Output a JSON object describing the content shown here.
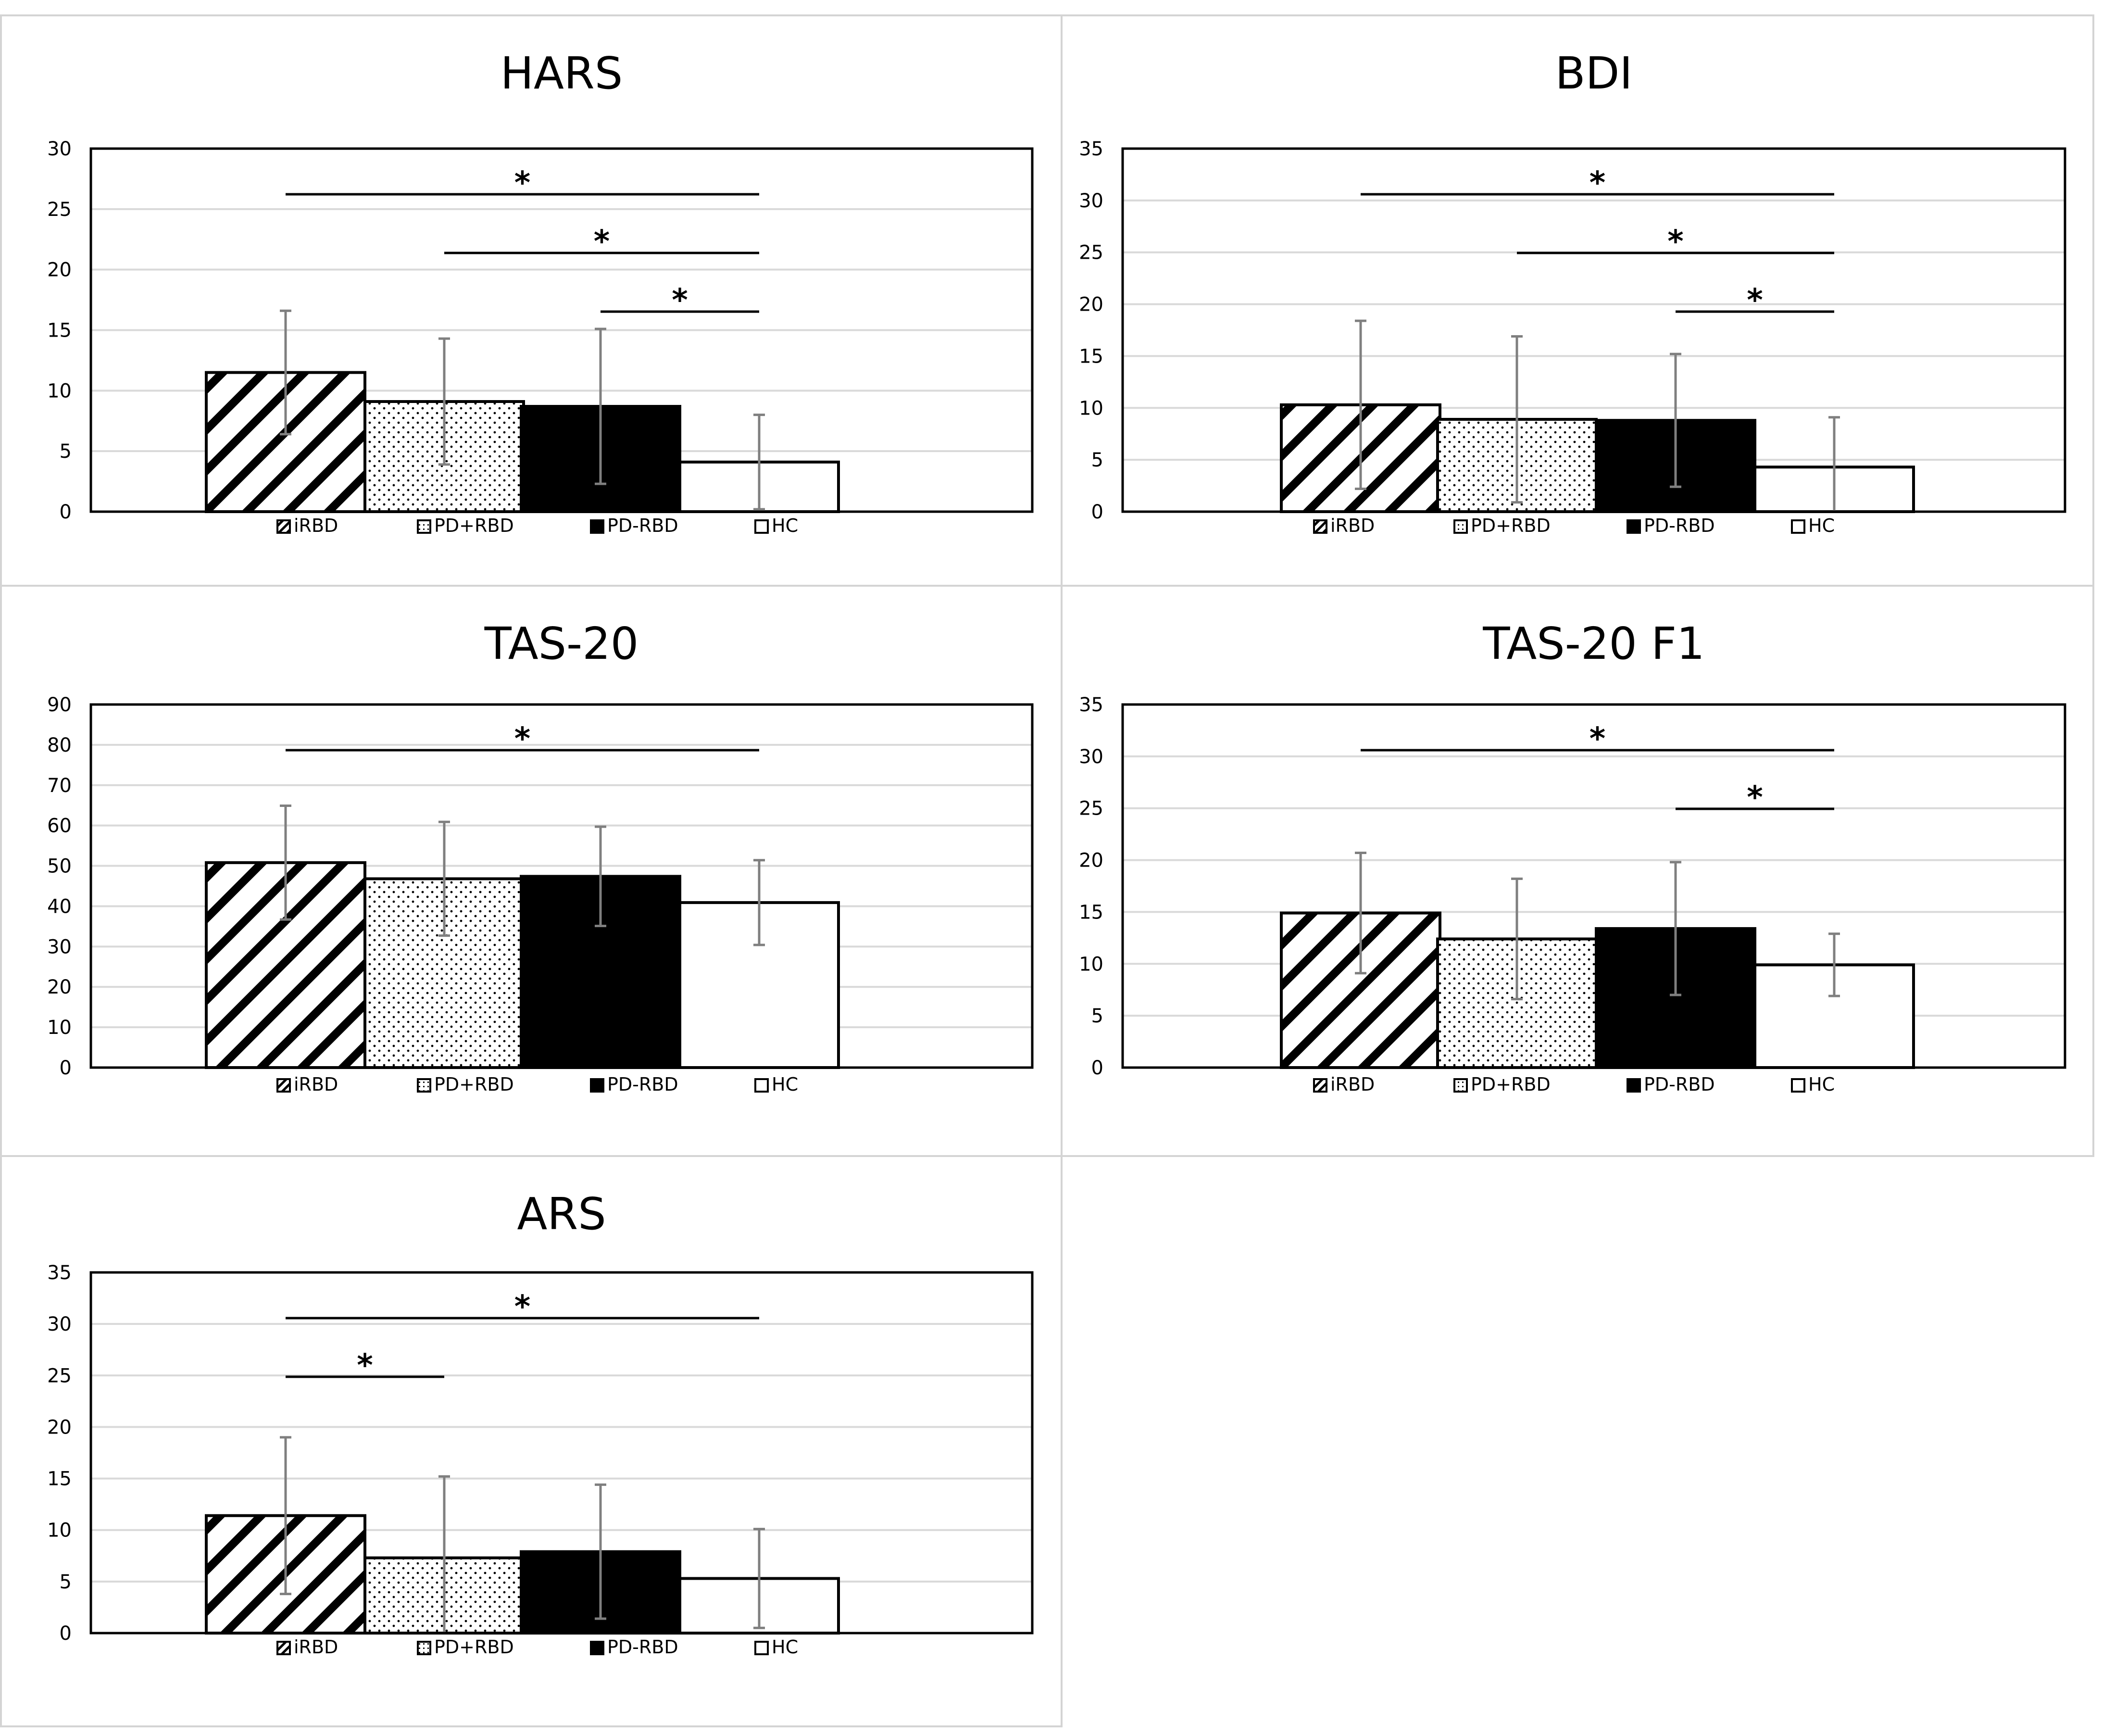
{
  "legend_labels": [
    "iRBD",
    "PD+RBD",
    "PD-RBD",
    "HC"
  ],
  "colors": {
    "axis": "#000000",
    "grid": "#d9d9d9",
    "errorbar": "#7f7f7f",
    "border": "#d4d4d4"
  },
  "chart_data": [
    {
      "type": "bar",
      "title": "HARS",
      "categories": [
        "iRBD",
        "PD+RBD",
        "PD-RBD",
        "HC"
      ],
      "values": [
        11.5,
        9.1,
        8.7,
        4.1
      ],
      "errors": [
        5.1,
        5.2,
        6.4,
        3.9
      ],
      "ylim": [
        0,
        30
      ],
      "ystep": 5,
      "yticks": [
        "0",
        "5",
        "10",
        "15",
        "20",
        "25",
        "30"
      ],
      "legend": [
        "iRBD",
        "PD+RBD",
        "PD-RBD",
        "HC"
      ],
      "significance": [
        {
          "from": "iRBD",
          "to": "HC",
          "label": "*"
        },
        {
          "from": "PD+RBD",
          "to": "HC",
          "label": "*"
        },
        {
          "from": "PD-RBD",
          "to": "HC",
          "label": "*"
        }
      ]
    },
    {
      "type": "bar",
      "title": "BDI",
      "categories": [
        "iRBD",
        "PD+RBD",
        "PD-RBD",
        "HC"
      ],
      "values": [
        10.3,
        8.9,
        8.8,
        4.3
      ],
      "errors": [
        8.1,
        8.0,
        6.4,
        4.8
      ],
      "ylim": [
        0,
        35
      ],
      "ystep": 5,
      "yticks": [
        "0",
        "5",
        "10",
        "15",
        "20",
        "25",
        "30",
        "35"
      ],
      "legend": [
        "iRBD",
        "PD+RBD",
        "PD-RBD",
        "HC"
      ],
      "significance": [
        {
          "from": "iRBD",
          "to": "HC",
          "label": "*"
        },
        {
          "from": "PD+RBD",
          "to": "HC",
          "label": "*"
        },
        {
          "from": "PD-RBD",
          "to": "HC",
          "label": "*"
        }
      ]
    },
    {
      "type": "bar",
      "title": "TAS-20",
      "categories": [
        "iRBD",
        "PD+RBD",
        "PD-RBD",
        "HC"
      ],
      "values": [
        50.8,
        46.8,
        47.4,
        40.9
      ],
      "errors": [
        14.1,
        14.1,
        12.3,
        10.5
      ],
      "ylim": [
        0,
        90
      ],
      "ystep": 10,
      "yticks": [
        "0",
        "10",
        "20",
        "30",
        "40",
        "50",
        "60",
        "70",
        "80",
        "90"
      ],
      "legend": [
        "iRBD",
        "PD+RBD",
        "PD-RBD",
        "HC"
      ],
      "significance": [
        {
          "from": "iRBD",
          "to": "HC",
          "label": "*"
        }
      ]
    },
    {
      "type": "bar",
      "title": "TAS-20 F1",
      "categories": [
        "iRBD",
        "PD+RBD",
        "PD-RBD",
        "HC"
      ],
      "values": [
        14.9,
        12.4,
        13.4,
        9.9
      ],
      "errors": [
        5.8,
        5.8,
        6.4,
        3.0
      ],
      "ylim": [
        0,
        35
      ],
      "ystep": 5,
      "yticks": [
        "0",
        "5",
        "10",
        "15",
        "20",
        "25",
        "30",
        "35"
      ],
      "legend": [
        "iRBD",
        "PD+RBD",
        "PD-RBD",
        "HC"
      ],
      "significance": [
        {
          "from": "iRBD",
          "to": "HC",
          "label": "*"
        },
        {
          "from": "PD-RBD",
          "to": "HC",
          "label": "*"
        }
      ]
    },
    {
      "type": "bar",
      "title": "ARS",
      "categories": [
        "iRBD",
        "PD+RBD",
        "PD-RBD",
        "HC"
      ],
      "values": [
        11.4,
        7.3,
        7.9,
        5.3
      ],
      "errors": [
        7.6,
        7.9,
        6.5,
        4.8
      ],
      "ylim": [
        0,
        35
      ],
      "ystep": 5,
      "yticks": [
        "0",
        "5",
        "10",
        "15",
        "20",
        "25",
        "30",
        "35"
      ],
      "legend": [
        "iRBD",
        "PD+RBD",
        "PD-RBD",
        "HC"
      ],
      "significance": [
        {
          "from": "iRBD",
          "to": "HC",
          "label": "*"
        },
        {
          "from": "iRBD",
          "to": "PD+RBD",
          "label": "*"
        }
      ]
    }
  ]
}
